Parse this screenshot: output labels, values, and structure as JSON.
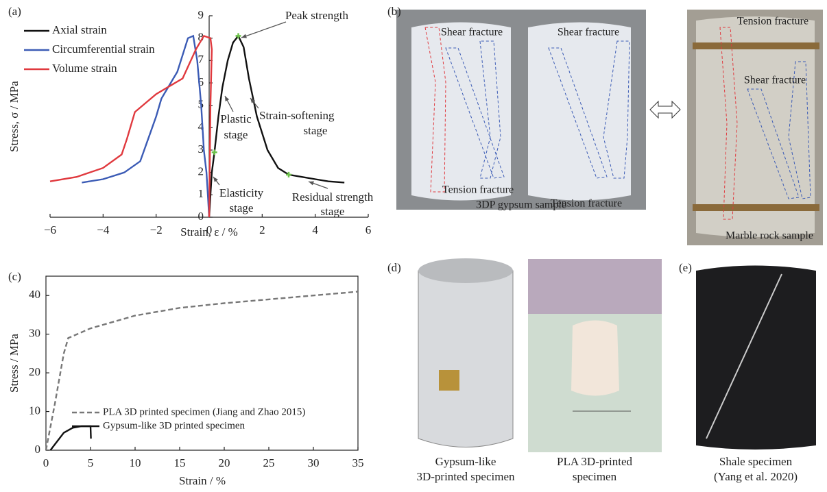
{
  "chart_data": [
    {
      "type": "line",
      "panel_label": "(a)",
      "x_label": "Strain, ε / %",
      "y_label": "Stress, σ / MPa",
      "xlim": [
        -6,
        6
      ],
      "ylim": [
        0,
        9
      ],
      "xticks": [
        {
          "value": -6,
          "label": "−6"
        },
        {
          "value": -4,
          "label": "−4"
        },
        {
          "value": -2,
          "label": "−2"
        },
        0,
        2,
        4,
        6
      ],
      "yticks": [
        0,
        1,
        2,
        3,
        4,
        5,
        6,
        7,
        8,
        9
      ],
      "legend": "upper left",
      "series": [
        {
          "name": "Axial strain",
          "color": "#111111",
          "x": [
            0,
            0.05,
            0.1,
            0.2,
            0.35,
            0.5,
            0.7,
            0.9,
            1.1,
            1.3,
            1.5,
            1.8,
            2.2,
            2.6,
            3,
            3.5,
            4,
            4.5,
            5.1
          ],
          "values": [
            0,
            1,
            2,
            2.9,
            4.5,
            5.8,
            7,
            7.8,
            8.1,
            7.6,
            6.2,
            4.5,
            3,
            2.2,
            1.9,
            1.8,
            1.7,
            1.6,
            1.55
          ]
        },
        {
          "name": "Circumferential strain",
          "color": "#3b5bb5",
          "x": [
            0,
            -0.05,
            -0.1,
            -0.2,
            -0.3,
            -0.45,
            -0.6,
            -0.8,
            -1.2,
            -1.8,
            -2,
            -2.3,
            -2.6,
            -3.2,
            -4,
            -4.8
          ],
          "values": [
            0,
            1,
            2,
            3,
            5,
            7,
            8.1,
            8,
            6.5,
            5.3,
            4.5,
            3.5,
            2.5,
            2,
            1.7,
            1.55
          ]
        },
        {
          "name": "Volume strain",
          "color": "#e0393e",
          "x": [
            0,
            0.02,
            0.05,
            0.1,
            0.05,
            -0.2,
            -0.5,
            -1,
            -2,
            -2.8,
            -3.1,
            -3.3,
            -4,
            -5,
            -6
          ],
          "values": [
            0,
            2,
            5,
            7.5,
            8,
            8.1,
            7.5,
            6.2,
            5.5,
            4.7,
            3.5,
            2.8,
            2.2,
            1.8,
            1.6
          ]
        }
      ],
      "markers": {
        "x": [
          0.2,
          1.1,
          3
        ],
        "y": [
          2.9,
          8.1,
          1.9
        ],
        "color": "#6cc24a"
      },
      "annotations": [
        [
          "Peak strength"
        ],
        [
          "Plastic",
          "stage"
        ],
        [
          "Strain-softening",
          "stage"
        ],
        [
          "Elasticity",
          "stage"
        ],
        [
          "Residual strength",
          "stage"
        ]
      ]
    },
    {
      "type": "line",
      "panel_label": "(c)",
      "x_label": "Strain / %",
      "y_label": "Stress / MPa",
      "xlim": [
        0,
        35
      ],
      "ylim": [
        0,
        45
      ],
      "xticks": [
        0,
        5,
        10,
        15,
        20,
        25,
        30,
        35
      ],
      "yticks": [
        0,
        10,
        20,
        30,
        40
      ],
      "legend": "center left",
      "series": [
        {
          "name": "PLA 3D printed specimen (Jiang and Zhao 2015)",
          "color": "#777777",
          "dash": true,
          "x": [
            0,
            1,
            2,
            2.5,
            5,
            10,
            15,
            20,
            25,
            30,
            35
          ],
          "values": [
            0,
            12,
            25,
            29,
            31.5,
            34.8,
            36.8,
            38,
            39,
            40,
            41
          ]
        },
        {
          "name": "Gypsum-like 3D printed specimen",
          "color": "#111111",
          "dash": false,
          "x": [
            0.5,
            1,
            2,
            3,
            4,
            5,
            5.05
          ],
          "values": [
            0,
            1.5,
            4.5,
            5.8,
            6.2,
            6.2,
            3
          ]
        }
      ]
    }
  ],
  "panel_b": {
    "label": "(b)",
    "labels": [
      "Shear fracture",
      "Shear fracture",
      "Shear fracture",
      "Tension fracture",
      "Tension fracture",
      "Tension fracture",
      "3DP gypsum sample",
      "Marble rock sample"
    ]
  },
  "panel_d": {
    "label": "(d)",
    "captions": [
      [
        "Gypsum-like",
        "3D-printed specimen"
      ],
      [
        "PLA 3D-printed",
        "specimen"
      ]
    ]
  },
  "panel_e": {
    "label": "(e)",
    "caption": [
      "Shale specimen",
      "(Yang et al. 2020)"
    ]
  }
}
